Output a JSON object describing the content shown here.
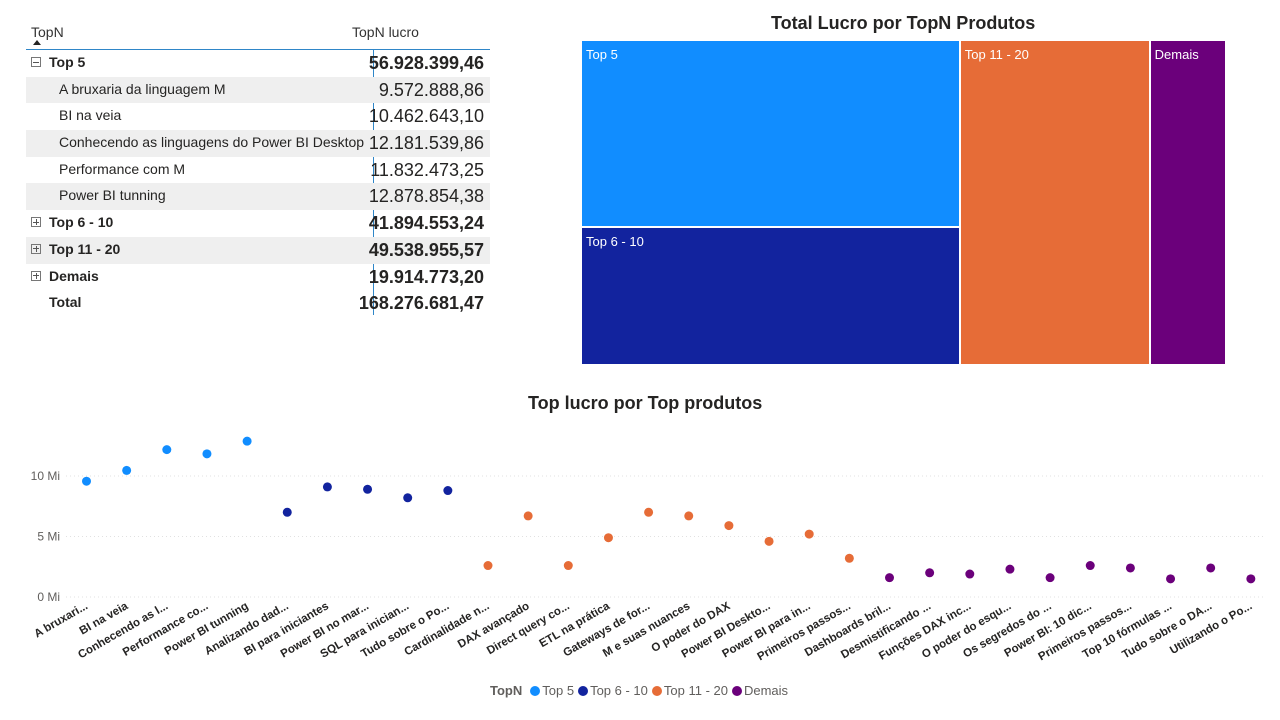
{
  "colors": {
    "top5": "#118dff",
    "top6_10": "#12239e",
    "top11_20": "#e66c37",
    "demais": "#6b007b",
    "table_accent": "#2f86c8"
  },
  "matrix": {
    "col1": "TopN",
    "col2": "TopN lucro",
    "rows": [
      {
        "label": "Top 5",
        "value": "56.928.399,46",
        "level": "group",
        "expanded": true
      },
      {
        "label": "A bruxaria da linguagem M",
        "value": "9.572.888,86",
        "level": "child"
      },
      {
        "label": "BI na veia",
        "value": "10.462.643,10",
        "level": "child"
      },
      {
        "label": "Conhecendo as linguagens do Power BI Desktop",
        "value": "12.181.539,86",
        "level": "child"
      },
      {
        "label": "Performance com M",
        "value": "11.832.473,25",
        "level": "child"
      },
      {
        "label": "Power BI tunning",
        "value": "12.878.854,38",
        "level": "child"
      },
      {
        "label": "Top 6 - 10",
        "value": "41.894.553,24",
        "level": "group",
        "expanded": false
      },
      {
        "label": "Top 11 - 20",
        "value": "49.538.955,57",
        "level": "group",
        "expanded": false
      },
      {
        "label": "Demais",
        "value": "19.914.773,20",
        "level": "group",
        "expanded": false
      },
      {
        "label": "Total",
        "value": "168.276.681,47",
        "level": "total"
      }
    ]
  },
  "treemap": {
    "title": "Total Lucro por TopN Produtos",
    "items": [
      {
        "label": "Top 5",
        "value": 56928399.46
      },
      {
        "label": "Top 6 - 10",
        "value": 41894553.24
      },
      {
        "label": "Top 11 - 20",
        "value": 49538955.57
      },
      {
        "label": "Demais",
        "value": 19914773.2
      }
    ]
  },
  "chart_data": {
    "type": "scatter",
    "title": "Top lucro por Top produtos",
    "y_ticks": [
      "0 Mi",
      "5 Mi",
      "10 Mi"
    ],
    "ylim": [
      0,
      14
    ],
    "legend_title": "TopN",
    "legend_position": "bottom",
    "series_names": [
      "Top 5",
      "Top 6 - 10",
      "Top 11 - 20",
      "Demais"
    ],
    "categories": [
      "A bruxari...",
      "BI na veia",
      "Conhecendo as l...",
      "Performance co...",
      "Power BI tunning",
      "Analizando dad...",
      "BI para iniciantes",
      "Power BI no mar...",
      "SQL para inician...",
      "Tudo sobre o Po...",
      "Cardinalidade n...",
      "DAX avançado",
      "Direct query co...",
      "ETL na prática",
      "Gateways de for...",
      "M e suas nuances",
      "O poder do DAX",
      "Power BI Deskto...",
      "Power BI para in...",
      "Primeiros passos...",
      "Dashboards bril...",
      "Desmistificando ...",
      "Funções DAX inc...",
      "O poder do esqu...",
      "Os segredos do ...",
      "Power BI: 10 dic...",
      "Primeiros passos...",
      "Top 10 fórmulas ...",
      "Tudo sobre o DA...",
      "Utilizando o Po..."
    ],
    "values": [
      9.57,
      10.46,
      12.18,
      11.83,
      12.88,
      7.0,
      9.1,
      8.9,
      8.2,
      8.8,
      2.6,
      6.7,
      2.6,
      4.9,
      7.0,
      6.7,
      5.9,
      4.6,
      5.2,
      3.2,
      1.6,
      2.0,
      1.9,
      2.3,
      1.6,
      2.6,
      2.4,
      1.5,
      2.4,
      1.5
    ],
    "groups": [
      0,
      0,
      0,
      0,
      0,
      1,
      1,
      1,
      1,
      1,
      2,
      2,
      2,
      2,
      2,
      2,
      2,
      2,
      2,
      2,
      3,
      3,
      3,
      3,
      3,
      3,
      3,
      3,
      3,
      3
    ]
  }
}
